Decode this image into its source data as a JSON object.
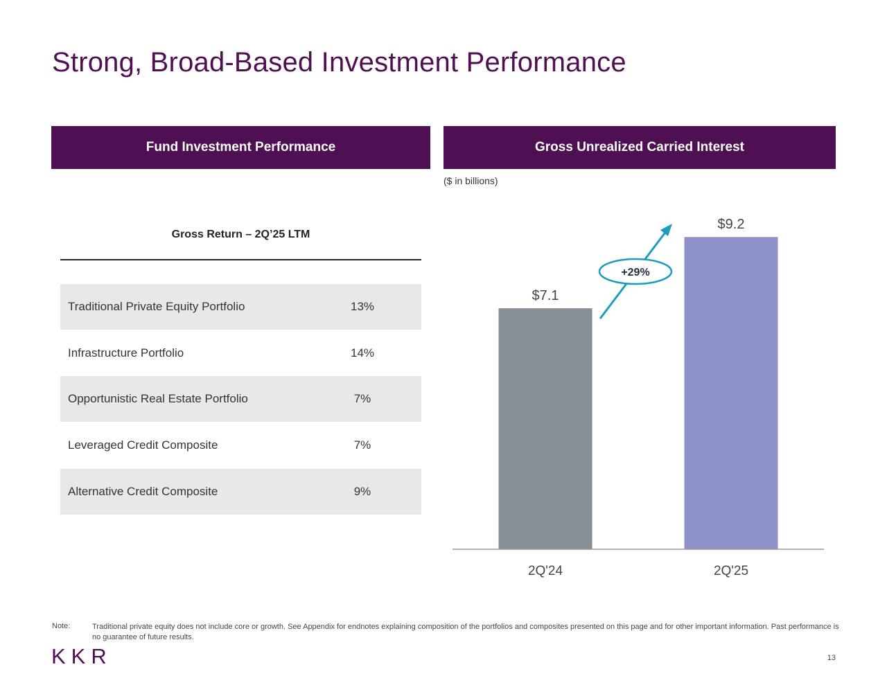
{
  "title": "Strong, Broad-Based Investment Performance",
  "left_panel": {
    "header": "Fund Investment Performance",
    "table_header": "Gross Return – 2Q’25 LTM",
    "rows": [
      {
        "label": "Traditional Private Equity Portfolio",
        "value": "13%"
      },
      {
        "label": "Infrastructure Portfolio",
        "value": "14%"
      },
      {
        "label": "Opportunistic Real Estate Portfolio",
        "value": "7%"
      },
      {
        "label": "Leveraged Credit Composite",
        "value": "7%"
      },
      {
        "label": "Alternative Credit Composite",
        "value": "9%"
      }
    ]
  },
  "right_panel": {
    "header": "Gross Unrealized Carried Interest",
    "units": "($ in billions)"
  },
  "chart_data": {
    "type": "bar",
    "title": "Gross Unrealized Carried Interest",
    "ylabel": "($ in billions)",
    "xlabel": "",
    "categories": [
      "2Q'24",
      "2Q'25"
    ],
    "values": [
      7.1,
      9.2
    ],
    "value_labels": [
      "$7.1",
      "$9.2"
    ],
    "colors": [
      "#879096",
      "#8e91c8"
    ],
    "ylim": [
      0,
      10
    ],
    "grid": false,
    "annotation": {
      "text": "+29%",
      "color": "#1a9dbf"
    }
  },
  "note": {
    "tag": "Note:",
    "text": "Traditional private equity does not include core or growth. See Appendix for endnotes explaining composition of the portfolios and composites presented on this page and for other important information. Past performance is no guarantee of future results."
  },
  "logo_text": "KKR",
  "page_number": "13",
  "colors": {
    "brand": "#4e0f53",
    "accent": "#1a9dbf"
  }
}
